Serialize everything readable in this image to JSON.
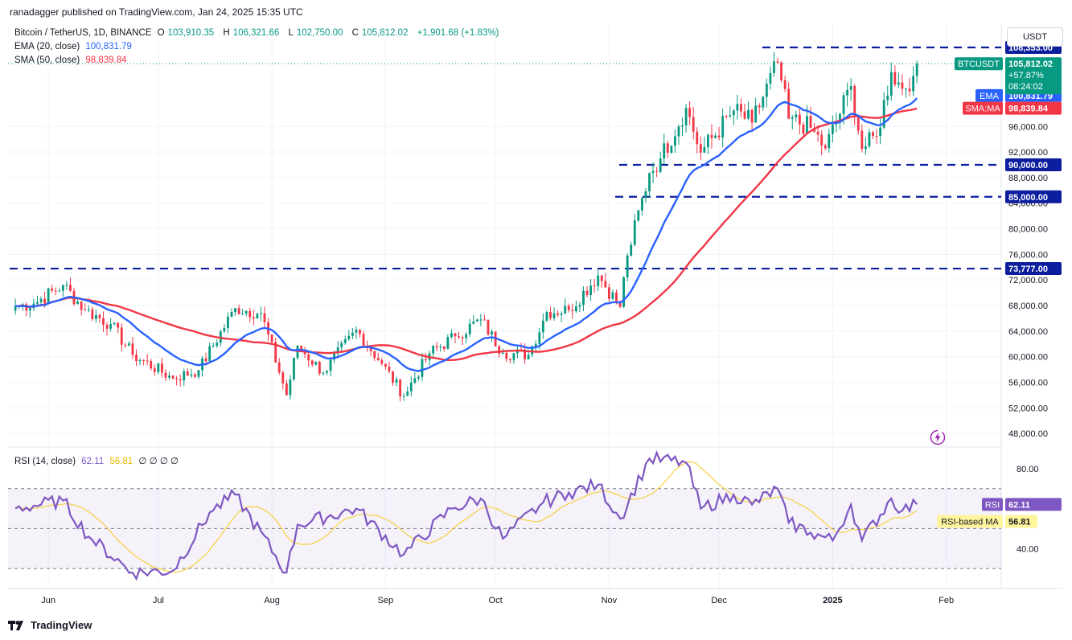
{
  "header": {
    "publisher_line": "ranadagger published on TradingView.com, Jan 24, 2025 15:35 UTC"
  },
  "legend": {
    "symbol": "Bitcoin / TetherUS, 1D, BINANCE",
    "open_label": "O",
    "open": "103,910.35",
    "high_label": "H",
    "high": "106,321.66",
    "low_label": "L",
    "low": "102,750.00",
    "close_label": "C",
    "close": "105,812.02",
    "change": "+1,901.68 (+1.83%)",
    "ema_label": "EMA (20, close)",
    "ema_value": "100,831.79",
    "sma_label": "SMA (50, close)",
    "sma_value": "98,839.84",
    "rsi_label": "RSI (14, close)",
    "rsi_value": "62.11",
    "rsi_ma_value": "56.81",
    "rsi_extra": "∅ ∅ ∅ ∅"
  },
  "currency_button": "USDT",
  "price_tag": {
    "symbol": "BTCUSDT",
    "price": "105,812.02",
    "change": "+57.87%",
    "countdown": "08:24:02"
  },
  "ema_tag": {
    "label": "EMA",
    "value": "100,831.79"
  },
  "sma_tag": {
    "label": "SMA:MA",
    "value": "98,839.84"
  },
  "rsi_tag": {
    "label": "RSI",
    "value": "62.11"
  },
  "rsi_ma_tag": {
    "label": "RSI-based MA",
    "value": "56.81"
  },
  "level_tags": [
    "108,353.00",
    "90,000.00",
    "85,000.00",
    "73,777.00"
  ],
  "footer": {
    "brand": "TradingView"
  },
  "colors": {
    "up": "#089981",
    "down": "#f23645",
    "ema": "#2962ff",
    "sma": "#f23645",
    "rsi": "#7e57c2",
    "rsi_ma": "#f5d140",
    "level": "#0b1e9e"
  },
  "chart_data": [
    {
      "type": "candlestick",
      "title": "Bitcoin / TetherUS, 1D, BINANCE",
      "y_axis_ticks": [
        "48,000.00",
        "52,000.00",
        "56,000.00",
        "60,000.00",
        "64,000.00",
        "68,000.00",
        "72,000.00",
        "76,000.00",
        "80,000.00",
        "84,000.00",
        "88,000.00",
        "92,000.00",
        "96,000.00"
      ],
      "x_axis_ticks": [
        "Jun",
        "Jul",
        "Aug",
        "Sep",
        "Oct",
        "Nov",
        "Dec",
        "2025",
        "Feb"
      ],
      "ylim": [
        46000,
        112000
      ],
      "horizontal_levels": [
        108353,
        90000,
        85000,
        73777
      ],
      "close_anchors": [
        {
          "x": "2024-05-23",
          "y": 67900
        },
        {
          "x": "2024-05-28",
          "y": 68300
        },
        {
          "x": "2024-06-05",
          "y": 71200
        },
        {
          "x": "2024-06-11",
          "y": 67300
        },
        {
          "x": "2024-06-18",
          "y": 65100
        },
        {
          "x": "2024-06-24",
          "y": 60300
        },
        {
          "x": "2024-07-05",
          "y": 56600
        },
        {
          "x": "2024-07-12",
          "y": 57900
        },
        {
          "x": "2024-07-22",
          "y": 67600
        },
        {
          "x": "2024-07-29",
          "y": 66800
        },
        {
          "x": "2024-08-05",
          "y": 54000
        },
        {
          "x": "2024-08-08",
          "y": 61700
        },
        {
          "x": "2024-08-15",
          "y": 57500
        },
        {
          "x": "2024-08-24",
          "y": 64200
        },
        {
          "x": "2024-08-31",
          "y": 58900
        },
        {
          "x": "2024-09-06",
          "y": 53900
        },
        {
          "x": "2024-09-13",
          "y": 60500
        },
        {
          "x": "2024-09-20",
          "y": 63200
        },
        {
          "x": "2024-09-27",
          "y": 65800
        },
        {
          "x": "2024-10-03",
          "y": 60600
        },
        {
          "x": "2024-10-10",
          "y": 60300
        },
        {
          "x": "2024-10-15",
          "y": 67000
        },
        {
          "x": "2024-10-21",
          "y": 67300
        },
        {
          "x": "2024-10-29",
          "y": 72700
        },
        {
          "x": "2024-11-04",
          "y": 67800
        },
        {
          "x": "2024-11-06",
          "y": 75800
        },
        {
          "x": "2024-11-12",
          "y": 88700
        },
        {
          "x": "2024-11-15",
          "y": 91000
        },
        {
          "x": "2024-11-22",
          "y": 98900
        },
        {
          "x": "2024-11-26",
          "y": 91900
        },
        {
          "x": "2024-12-05",
          "y": 98500
        },
        {
          "x": "2024-12-10",
          "y": 96600
        },
        {
          "x": "2024-12-17",
          "y": 106000
        },
        {
          "x": "2024-12-20",
          "y": 97200
        },
        {
          "x": "2024-12-26",
          "y": 95800
        },
        {
          "x": "2024-12-30",
          "y": 92600
        },
        {
          "x": "2025-01-06",
          "y": 102300
        },
        {
          "x": "2025-01-09",
          "y": 92500
        },
        {
          "x": "2025-01-13",
          "y": 94500
        },
        {
          "x": "2025-01-17",
          "y": 104500
        },
        {
          "x": "2025-01-20",
          "y": 101900
        },
        {
          "x": "2025-01-23",
          "y": 103900
        },
        {
          "x": "2025-01-24",
          "y": 105812
        }
      ],
      "last_ohlc": {
        "open": 103910.35,
        "high": 106321.66,
        "low": 102750.0,
        "close": 105812.02
      },
      "series": [
        {
          "name": "EMA (20, close)",
          "last": 100831.79
        },
        {
          "name": "SMA (50, close)",
          "last": 98839.84
        }
      ]
    },
    {
      "type": "line",
      "title": "RSI (14, close)",
      "y_axis_ticks": [
        "40.00",
        "80.00"
      ],
      "bands": [
        70,
        30
      ],
      "ylim": [
        20,
        90
      ],
      "series": [
        {
          "name": "RSI",
          "last": 62.11,
          "points": [
            {
              "x": "2024-05-23",
              "y": 60
            },
            {
              "x": "2024-06-05",
              "y": 64
            },
            {
              "x": "2024-06-12",
              "y": 46
            },
            {
              "x": "2024-06-24",
              "y": 28
            },
            {
              "x": "2024-07-05",
              "y": 29
            },
            {
              "x": "2024-07-15",
              "y": 58
            },
            {
              "x": "2024-07-22",
              "y": 67
            },
            {
              "x": "2024-08-05",
              "y": 28
            },
            {
              "x": "2024-08-08",
              "y": 52
            },
            {
              "x": "2024-08-24",
              "y": 60
            },
            {
              "x": "2024-09-06",
              "y": 37
            },
            {
              "x": "2024-09-19",
              "y": 60
            },
            {
              "x": "2024-09-27",
              "y": 65
            },
            {
              "x": "2024-10-03",
              "y": 45
            },
            {
              "x": "2024-10-14",
              "y": 63
            },
            {
              "x": "2024-10-21",
              "y": 68
            },
            {
              "x": "2024-10-29",
              "y": 72
            },
            {
              "x": "2024-11-04",
              "y": 55
            },
            {
              "x": "2024-11-12",
              "y": 85
            },
            {
              "x": "2024-11-22",
              "y": 83
            },
            {
              "x": "2024-11-26",
              "y": 60
            },
            {
              "x": "2024-12-05",
              "y": 67
            },
            {
              "x": "2024-12-10",
              "y": 62
            },
            {
              "x": "2024-12-17",
              "y": 70
            },
            {
              "x": "2024-12-20",
              "y": 53
            },
            {
              "x": "2024-12-26",
              "y": 48
            },
            {
              "x": "2025-01-01",
              "y": 44
            },
            {
              "x": "2025-01-06",
              "y": 62
            },
            {
              "x": "2025-01-09",
              "y": 44
            },
            {
              "x": "2025-01-17",
              "y": 65
            },
            {
              "x": "2025-01-20",
              "y": 59
            },
            {
              "x": "2025-01-24",
              "y": 62.11
            }
          ]
        },
        {
          "name": "RSI-based MA",
          "last": 56.81
        }
      ]
    }
  ]
}
